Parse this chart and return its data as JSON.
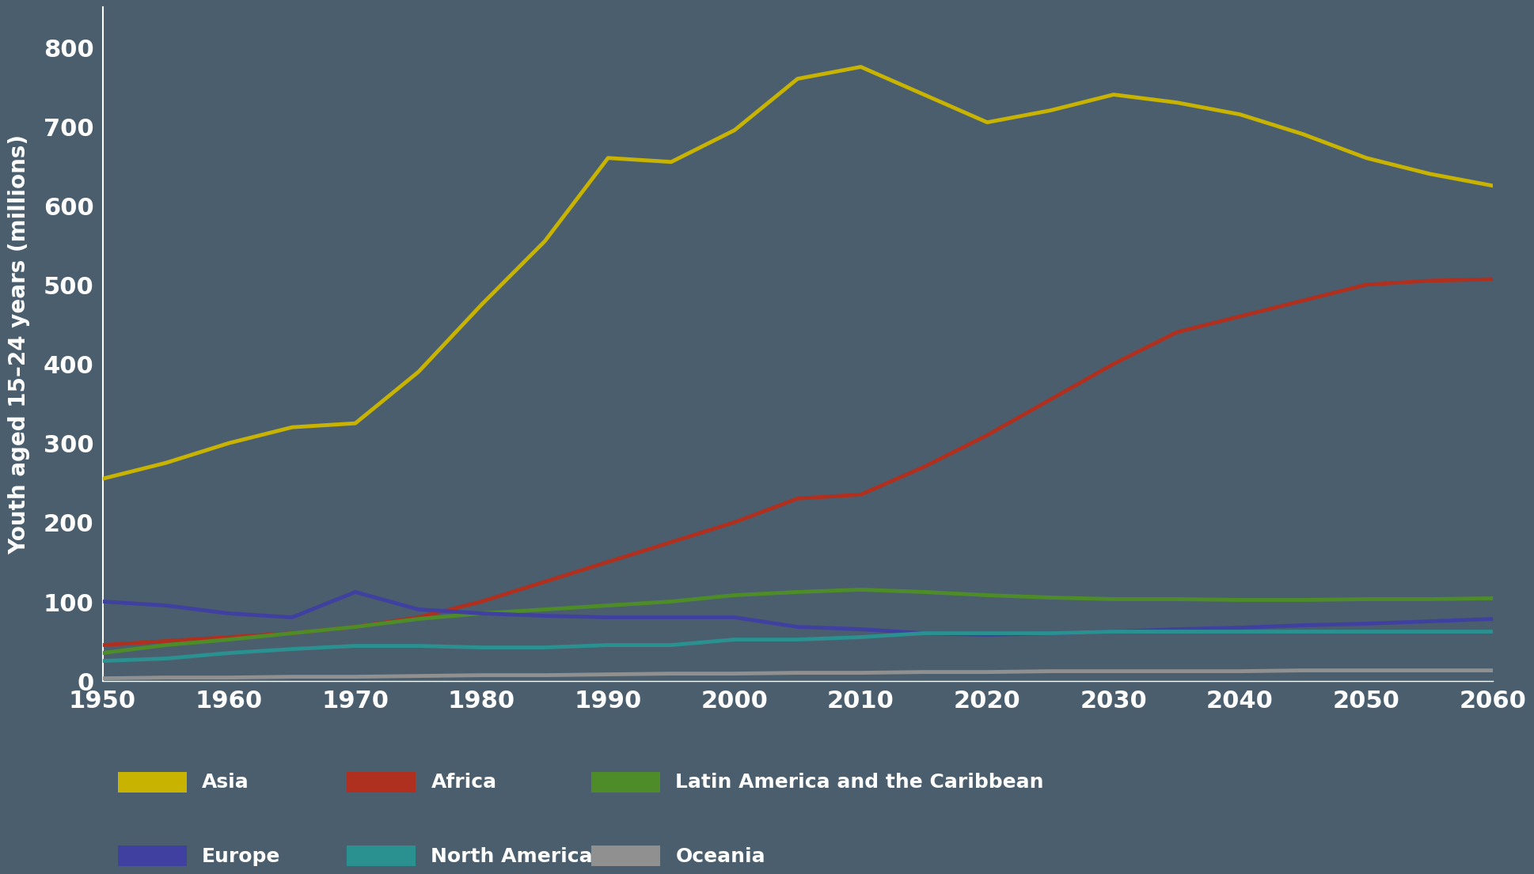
{
  "years": [
    1950,
    1955,
    1960,
    1965,
    1970,
    1975,
    1980,
    1985,
    1990,
    1995,
    2000,
    2005,
    2010,
    2015,
    2020,
    2025,
    2030,
    2035,
    2040,
    2045,
    2050,
    2055,
    2060
  ],
  "Asia": [
    255,
    275,
    300,
    320,
    325,
    390,
    475,
    555,
    660,
    655,
    695,
    760,
    775,
    740,
    705,
    720,
    740,
    730,
    715,
    690,
    660,
    640,
    625
  ],
  "Africa": [
    45,
    50,
    55,
    60,
    68,
    80,
    100,
    125,
    150,
    175,
    200,
    230,
    235,
    270,
    310,
    355,
    400,
    440,
    460,
    480,
    500,
    505,
    507
  ],
  "Latin_America": [
    35,
    45,
    52,
    60,
    68,
    78,
    85,
    90,
    95,
    100,
    108,
    112,
    115,
    112,
    108,
    105,
    103,
    103,
    102,
    102,
    103,
    103,
    104
  ],
  "Europe": [
    100,
    95,
    85,
    80,
    112,
    90,
    85,
    82,
    80,
    80,
    80,
    68,
    65,
    60,
    58,
    60,
    62,
    65,
    67,
    70,
    72,
    75,
    78
  ],
  "North_America": [
    25,
    28,
    35,
    40,
    44,
    44,
    42,
    42,
    45,
    45,
    52,
    52,
    55,
    60,
    60,
    60,
    62,
    62,
    62,
    62,
    62,
    62,
    62
  ],
  "Oceania": [
    3,
    4,
    4,
    5,
    5,
    6,
    7,
    7,
    8,
    9,
    9,
    10,
    10,
    11,
    11,
    12,
    12,
    12,
    12,
    13,
    13,
    13,
    13
  ],
  "colors": {
    "Asia": "#c8b400",
    "Africa": "#b03020",
    "Latin_America": "#4e8c2a",
    "Europe": "#4040a0",
    "North_America": "#2a9090",
    "Oceania": "#909090"
  },
  "legend_labels": {
    "Asia": "Asia",
    "Africa": "Africa",
    "Latin_America": "Latin America and the Caribbean",
    "Europe": "Europe",
    "North_America": "North America",
    "Oceania": "Oceania"
  },
  "ylabel": "Youth aged 15–24 years (millions)",
  "ylim": [
    0,
    850
  ],
  "yticks": [
    0,
    100,
    200,
    300,
    400,
    500,
    600,
    700,
    800
  ],
  "xticks": [
    1950,
    1960,
    1970,
    1980,
    1990,
    2000,
    2010,
    2020,
    2030,
    2040,
    2050,
    2060
  ],
  "background_color": "#4a5e6e",
  "line_width": 3.5,
  "tick_color": "white",
  "label_color": "white",
  "spine_color": "white"
}
